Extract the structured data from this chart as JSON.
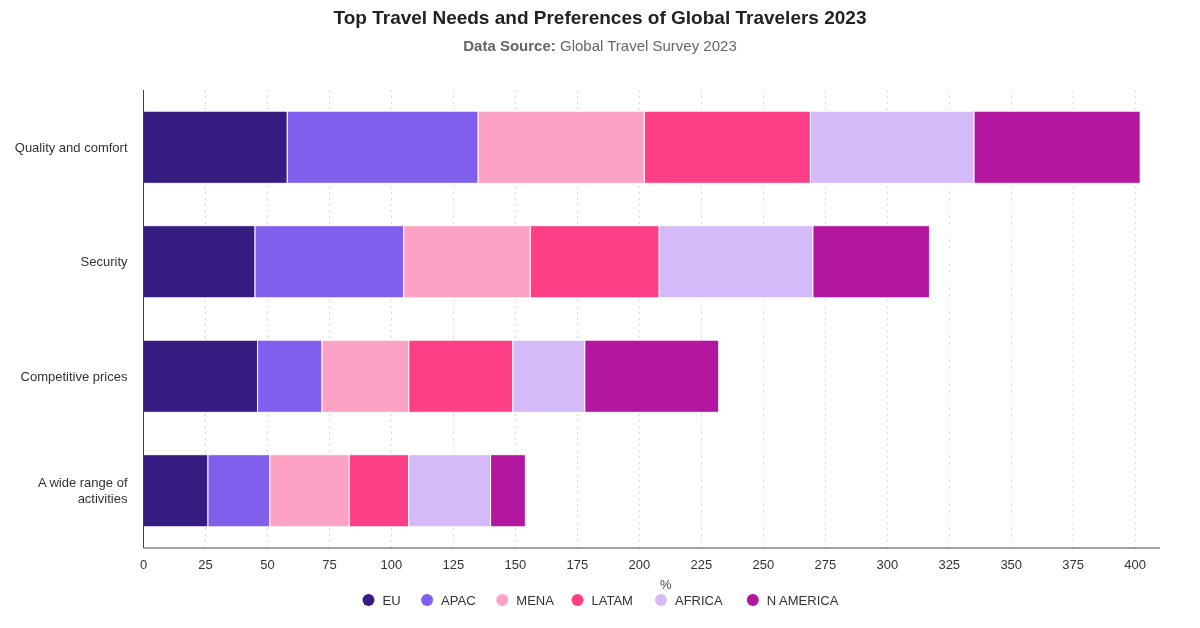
{
  "chart_data": {
    "type": "bar",
    "orientation": "horizontal",
    "stacked": true,
    "title": "Top Travel Needs and Preferences of Global Travelers 2023",
    "subtitle": "Data Source: Global Travel Survey 2023",
    "xlabel": "%",
    "categories": [
      "Quality and comfort",
      "Security",
      "Competitive prices",
      "A wide range of activities"
    ],
    "series": [
      {
        "name": "EU",
        "color": "#371c81",
        "values": [
          58,
          45,
          46,
          26
        ]
      },
      {
        "name": "APAC",
        "color": "#7f5fec",
        "values": [
          77,
          60,
          26,
          25
        ]
      },
      {
        "name": "MENA",
        "color": "#fea2c5",
        "values": [
          67,
          51,
          35,
          32
        ]
      },
      {
        "name": "LATAM",
        "color": "#fe3f86",
        "values": [
          67,
          52,
          42,
          24
        ]
      },
      {
        "name": "AFRICA",
        "color": "#d4baf9",
        "values": [
          66,
          62,
          29,
          33
        ]
      },
      {
        "name": "N AMERICA",
        "color": "#b3179f",
        "values": [
          67,
          47,
          54,
          14
        ]
      }
    ],
    "xlim": [
      0,
      410
    ],
    "xticks": [
      0,
      25,
      50,
      75,
      100,
      125,
      150,
      175,
      200,
      225,
      250,
      275,
      300,
      325,
      350,
      375,
      400
    ],
    "grid": "x",
    "legend": "bottom"
  }
}
